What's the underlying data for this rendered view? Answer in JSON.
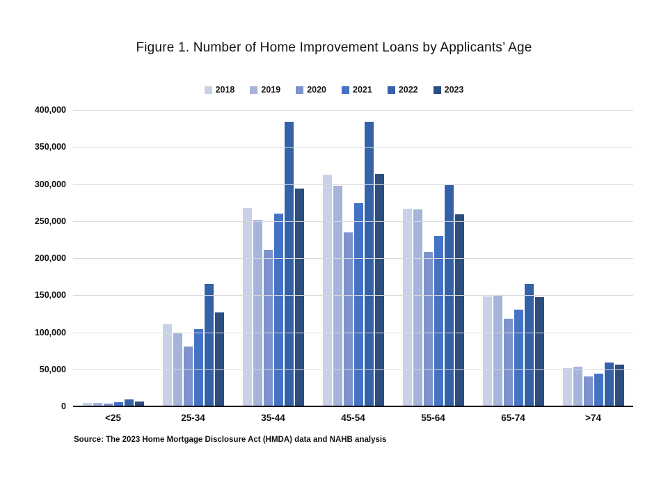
{
  "source_note": "Source: The 2023 Home Mortgage Disclosure  Act (HMDA)  data and NAHB analysis",
  "colors": {
    "background": "#ffffff",
    "gridline": "#d9d9d9",
    "axis_line": "#000000",
    "text": "#111111"
  },
  "chart_data": {
    "type": "bar",
    "title": "Figure 1. Number of Home Improvement Loans by Applicants’ Age",
    "xlabel": "",
    "ylabel": "",
    "categories": [
      "<25",
      "25-34",
      "35-44",
      "45-54",
      "55-64",
      "65-74",
      ">74"
    ],
    "series": [
      {
        "name": "2018",
        "color": "#c9d1e8",
        "values": [
          5000,
          111000,
          268000,
          313000,
          267000,
          148000,
          52000
        ]
      },
      {
        "name": "2019",
        "color": "#a6b4dc",
        "values": [
          5000,
          100000,
          252000,
          298000,
          266000,
          150000,
          54000
        ]
      },
      {
        "name": "2020",
        "color": "#7e93ce",
        "values": [
          4000,
          81000,
          211000,
          235000,
          208000,
          118000,
          40000
        ]
      },
      {
        "name": "2021",
        "color": "#4472c4",
        "values": [
          6000,
          104000,
          260000,
          274000,
          230000,
          131000,
          44000
        ]
      },
      {
        "name": "2022",
        "color": "#3561a9",
        "values": [
          9000,
          165000,
          384000,
          384000,
          300000,
          165000,
          59000
        ]
      },
      {
        "name": "2023",
        "color": "#2c4d80",
        "values": [
          7000,
          127000,
          294000,
          314000,
          259000,
          147000,
          56000
        ]
      }
    ],
    "ylim": [
      0,
      400000
    ],
    "ytick_step": 50000,
    "ytick_labels": [
      "0",
      "50,000",
      "100,000",
      "150,000",
      "200,000",
      "250,000",
      "300,000",
      "350,000",
      "400,000"
    ],
    "grid": "horizontal",
    "legend_position": "top"
  }
}
